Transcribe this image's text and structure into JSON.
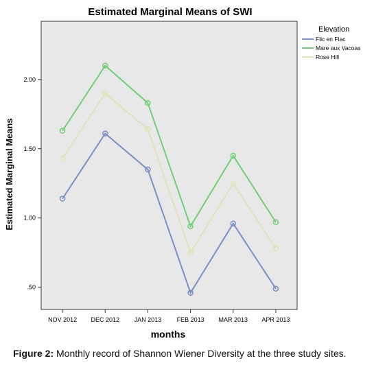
{
  "chart_data": {
    "type": "line",
    "title": "Estimated Marginal Means of SWI",
    "xlabel": "months",
    "ylabel": "Estimated Marginal Means",
    "categories": [
      "NOV 2012",
      "DEC 2012",
      "JAN 2013",
      "FEB 2013",
      "MAR 2013",
      "APR 2013"
    ],
    "yticks": [
      ".50",
      "1.00",
      "1.50",
      "2.00"
    ],
    "ylim": [
      0.34,
      2.42
    ],
    "grid": false,
    "legend": {
      "title": "Elevation",
      "placement": "top-right"
    },
    "series": [
      {
        "name": "Flic en Flac",
        "color": "#7c8ec5",
        "values": [
          1.14,
          1.61,
          1.35,
          0.46,
          0.96,
          0.49
        ]
      },
      {
        "name": "Mare aux Vacoas",
        "color": "#6fcf74",
        "values": [
          1.63,
          2.1,
          1.83,
          0.94,
          1.45,
          0.97
        ]
      },
      {
        "name": "Rose Hill",
        "color": "#e2e2b8",
        "values": [
          1.43,
          1.9,
          1.64,
          0.75,
          1.25,
          0.78
        ]
      }
    ],
    "plot_background": "#e8e8e8"
  },
  "caption": {
    "label": "Figure 2:",
    "text": "Monthly record of Shannon Wiener Diversity at the three study sites."
  }
}
